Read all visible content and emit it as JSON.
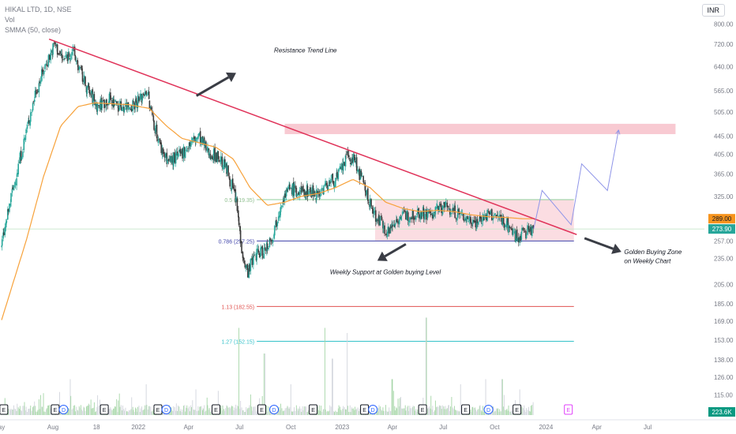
{
  "header": {
    "symbol_line": "HIKAL LTD, 1D, NSE",
    "vol_label": "Vol",
    "smma_label": "SMMA (50, close)",
    "currency": "INR"
  },
  "chart_data": {
    "type": "line",
    "subtype": "candlestick",
    "scale": "log",
    "y_ticks": [
      800,
      720,
      640,
      565,
      505,
      445,
      405,
      365,
      325,
      289,
      273.9,
      257,
      235,
      205,
      185,
      169,
      153,
      138,
      126,
      115
    ],
    "y_tick_labels": [
      "800.00",
      "720.00",
      "640.00",
      "565.00",
      "505.00",
      "445.00",
      "405.00",
      "365.00",
      "325.00",
      "289.00",
      "273.90",
      "257.00",
      "235.00",
      "205.00",
      "185.00",
      "169.00",
      "153.00",
      "138.00",
      "126.00",
      "115.00"
    ],
    "price_badges": [
      {
        "label": "289.00",
        "value": 289.0,
        "color": "#f7941d"
      },
      {
        "label": "273.90",
        "value": 273.9,
        "color": "#26a69a"
      }
    ],
    "volume_badge": {
      "label": "223.6K",
      "color": "#089981"
    },
    "x_ticks": [
      {
        "label": "ay",
        "date": "2021-05-01"
      },
      {
        "label": "Aug",
        "date": "2021-08-01"
      },
      {
        "label": "18",
        "date": "2021-10-18"
      },
      {
        "label": "2022",
        "date": "2022-01-01"
      },
      {
        "label": "Apr",
        "date": "2022-04-01"
      },
      {
        "label": "Jul",
        "date": "2022-07-01"
      },
      {
        "label": "Oct",
        "date": "2022-10-01"
      },
      {
        "label": "2023",
        "date": "2023-01-01"
      },
      {
        "label": "Apr",
        "date": "2023-04-01"
      },
      {
        "label": "Jul",
        "date": "2023-07-01"
      },
      {
        "label": "Oct",
        "date": "2023-10-01"
      },
      {
        "label": "2024",
        "date": "2024-01-01"
      },
      {
        "label": "Apr",
        "date": "2024-04-01"
      },
      {
        "label": "Jul",
        "date": "2024-07-01"
      }
    ],
    "price_path": [
      [
        "2021-05-01",
        250
      ],
      [
        "2021-05-20",
        330
      ],
      [
        "2021-06-10",
        430
      ],
      [
        "2021-07-01",
        560
      ],
      [
        "2021-07-20",
        650
      ],
      [
        "2021-08-05",
        720
      ],
      [
        "2021-08-20",
        660
      ],
      [
        "2021-09-05",
        700
      ],
      [
        "2021-09-20",
        620
      ],
      [
        "2021-10-05",
        560
      ],
      [
        "2021-10-20",
        520
      ],
      [
        "2021-11-10",
        540
      ],
      [
        "2021-11-30",
        520
      ],
      [
        "2021-12-20",
        525
      ],
      [
        "2022-01-05",
        540
      ],
      [
        "2022-01-15",
        570
      ],
      [
        "2022-01-25",
        500
      ],
      [
        "2022-02-10",
        420
      ],
      [
        "2022-02-25",
        390
      ],
      [
        "2022-03-15",
        400
      ],
      [
        "2022-04-05",
        430
      ],
      [
        "2022-04-20",
        445
      ],
      [
        "2022-05-05",
        410
      ],
      [
        "2022-05-25",
        400
      ],
      [
        "2022-06-10",
        370
      ],
      [
        "2022-06-25",
        320
      ],
      [
        "2022-07-05",
        250
      ],
      [
        "2022-07-15",
        218
      ],
      [
        "2022-07-30",
        240
      ],
      [
        "2022-08-15",
        245
      ],
      [
        "2022-09-01",
        270
      ],
      [
        "2022-09-15",
        320
      ],
      [
        "2022-10-01",
        340
      ],
      [
        "2022-10-15",
        330
      ],
      [
        "2022-11-01",
        335
      ],
      [
        "2022-11-20",
        330
      ],
      [
        "2022-12-10",
        350
      ],
      [
        "2022-12-25",
        360
      ],
      [
        "2023-01-10",
        400
      ],
      [
        "2023-01-25",
        390
      ],
      [
        "2023-02-10",
        340
      ],
      [
        "2023-02-25",
        300
      ],
      [
        "2023-03-10",
        285
      ],
      [
        "2023-03-25",
        270
      ],
      [
        "2023-04-10",
        290
      ],
      [
        "2023-05-01",
        295
      ],
      [
        "2023-05-20",
        300
      ],
      [
        "2023-06-10",
        295
      ],
      [
        "2023-07-01",
        310
      ],
      [
        "2023-07-20",
        300
      ],
      [
        "2023-08-10",
        290
      ],
      [
        "2023-08-30",
        285
      ],
      [
        "2023-09-20",
        295
      ],
      [
        "2023-10-10",
        290
      ],
      [
        "2023-10-25",
        280
      ],
      [
        "2023-11-10",
        262
      ],
      [
        "2023-11-25",
        270
      ],
      [
        "2023-12-10",
        274
      ]
    ],
    "smma_path": [
      [
        "2021-05-01",
        170
      ],
      [
        "2021-06-15",
        260
      ],
      [
        "2021-07-15",
        360
      ],
      [
        "2021-08-15",
        470
      ],
      [
        "2021-09-15",
        520
      ],
      [
        "2021-10-15",
        530
      ],
      [
        "2021-12-15",
        525
      ],
      [
        "2022-01-20",
        515
      ],
      [
        "2022-02-20",
        470
      ],
      [
        "2022-03-20",
        440
      ],
      [
        "2022-04-20",
        430
      ],
      [
        "2022-05-20",
        420
      ],
      [
        "2022-06-20",
        395
      ],
      [
        "2022-07-20",
        340
      ],
      [
        "2022-08-20",
        310
      ],
      [
        "2022-09-20",
        315
      ],
      [
        "2022-10-20",
        325
      ],
      [
        "2022-11-20",
        330
      ],
      [
        "2022-12-20",
        340
      ],
      [
        "2023-01-20",
        355
      ],
      [
        "2023-02-20",
        340
      ],
      [
        "2023-03-20",
        315
      ],
      [
        "2023-04-20",
        305
      ],
      [
        "2023-05-20",
        300
      ],
      [
        "2023-06-20",
        302
      ],
      [
        "2023-07-20",
        300
      ],
      [
        "2023-08-20",
        295
      ],
      [
        "2023-09-20",
        292
      ],
      [
        "2023-10-20",
        291
      ],
      [
        "2023-11-20",
        289
      ],
      [
        "2023-12-10",
        289
      ]
    ],
    "volume_spikes": [
      [
        "2021-09-01",
        0.35
      ],
      [
        "2022-01-15",
        0.3
      ],
      [
        "2022-04-15",
        0.25
      ],
      [
        "2022-07-01",
        0.85
      ],
      [
        "2022-08-15",
        0.6
      ],
      [
        "2022-10-01",
        0.3
      ],
      [
        "2022-12-01",
        0.85
      ],
      [
        "2022-12-15",
        0.55
      ],
      [
        "2023-01-10",
        0.8
      ],
      [
        "2023-04-01",
        0.35
      ],
      [
        "2023-06-01",
        0.95
      ],
      [
        "2023-08-01",
        0.3
      ],
      [
        "2023-09-15",
        0.35
      ],
      [
        "2023-10-15",
        0.35
      ],
      [
        "2023-11-15",
        0.25
      ]
    ],
    "event_markers": [
      {
        "label": "E",
        "date": "2021-05-05",
        "style": "earnings"
      },
      {
        "label": "E",
        "date": "2021-08-05",
        "style": "earnings"
      },
      {
        "label": "D",
        "date": "2021-08-20",
        "style": "dividend"
      },
      {
        "label": "E",
        "date": "2021-11-01",
        "style": "earnings"
      },
      {
        "label": "E",
        "date": "2022-02-05",
        "style": "earnings"
      },
      {
        "label": "D",
        "date": "2022-02-20",
        "style": "dividend"
      },
      {
        "label": "E",
        "date": "2022-05-20",
        "style": "earnings"
      },
      {
        "label": "E",
        "date": "2022-08-10",
        "style": "earnings"
      },
      {
        "label": "D",
        "date": "2022-09-01",
        "style": "dividend"
      },
      {
        "label": "E",
        "date": "2022-11-10",
        "style": "earnings"
      },
      {
        "label": "E",
        "date": "2023-02-10",
        "style": "earnings"
      },
      {
        "label": "D",
        "date": "2023-02-25",
        "style": "dividend"
      },
      {
        "label": "E",
        "date": "2023-05-25",
        "style": "earnings"
      },
      {
        "label": "E",
        "date": "2023-08-10",
        "style": "earnings"
      },
      {
        "label": "D",
        "date": "2023-09-20",
        "style": "dividend"
      },
      {
        "label": "E",
        "date": "2023-11-10",
        "style": "earnings"
      },
      {
        "label": "E",
        "date": "2024-02-10",
        "style": "upcoming"
      }
    ],
    "fib_levels": [
      {
        "label": "0.5 (319.35)",
        "value": 319.35,
        "color": "#8fcf9b",
        "text_color": "#8fbf8f",
        "from": "2022-08-01",
        "to": "2024-02-20"
      },
      {
        "label": "0.786 (257.25)",
        "value": 257.25,
        "color": "#3b3fa8",
        "text_color": "#3b3fa8",
        "from": "2022-08-01",
        "to": "2024-02-20"
      },
      {
        "label": "1.13 (182.55)",
        "value": 182.55,
        "color": "#e0524f",
        "text_color": "#e0524f",
        "from": "2022-08-01",
        "to": "2024-02-20"
      },
      {
        "label": "1.27 (152.15)",
        "value": 152.15,
        "color": "#35c2c9",
        "text_color": "#35c2c9",
        "from": "2022-08-01",
        "to": "2024-02-20"
      }
    ],
    "zones": [
      {
        "from": "2022-09-20",
        "to": "2024-08-20",
        "low": 450,
        "high": 475,
        "color": "#f4a7b4"
      },
      {
        "from": "2023-03-01",
        "to": "2024-02-20",
        "low": 258,
        "high": 320,
        "color": "#f9c7cf"
      }
    ],
    "trend_line": {
      "start": [
        "2021-07-25",
        740
      ],
      "end": [
        "2024-02-25",
        266
      ],
      "color": "#e0345a"
    },
    "projection_path": [
      [
        "2023-12-10",
        274
      ],
      [
        "2023-12-25",
        335
      ],
      [
        "2024-02-15",
        280
      ],
      [
        "2024-03-05",
        385
      ],
      [
        "2024-04-20",
        335
      ],
      [
        "2024-05-10",
        460
      ]
    ],
    "projection_color": "#8f95e8",
    "annotations": [
      {
        "text": "Resistance Trend Line",
        "date": "2022-09-01",
        "value": 690
      },
      {
        "text": "Weekly Support at Golden buying Level",
        "date": "2022-12-10",
        "value": 216
      },
      {
        "text": "Golden Buying Zone",
        "date": "2024-05-20",
        "value": 240
      },
      {
        "text": "on Weekly Chart",
        "date": "2024-05-20",
        "value": 229
      }
    ],
    "arrows": [
      {
        "from": [
          "2022-04-15",
          550
        ],
        "to": [
          "2022-06-25",
          620
        ]
      },
      {
        "from": [
          "2023-04-25",
          253
        ],
        "to": [
          "2023-03-05",
          232
        ]
      },
      {
        "from": [
          "2024-03-10",
          261
        ],
        "to": [
          "2024-05-15",
          243
        ]
      }
    ]
  }
}
